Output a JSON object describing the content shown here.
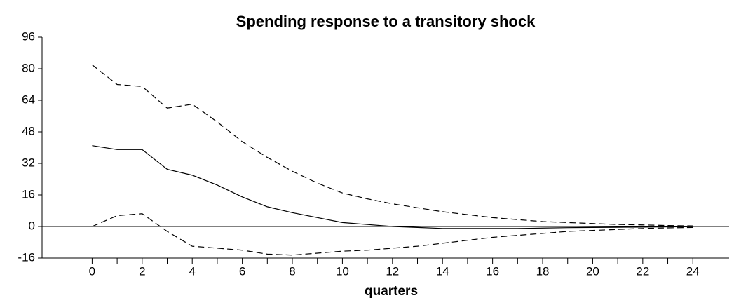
{
  "chart_data": {
    "type": "line",
    "title": "Spending response to a transitory shock",
    "x_label": "quarters",
    "x": [
      0,
      1,
      2,
      3,
      4,
      5,
      6,
      7,
      8,
      9,
      10,
      11,
      12,
      13,
      14,
      15,
      16,
      17,
      18,
      19,
      20,
      21,
      22,
      23,
      24
    ],
    "series": [
      {
        "color": "#000000",
        "dash": false,
        "values": [
          41,
          39,
          39,
          29,
          26,
          21,
          15,
          10,
          7,
          4.5,
          2,
          1,
          0,
          -0.5,
          -1,
          -1,
          -1,
          -1,
          -0.8,
          -0.6,
          -0.5,
          -0.4,
          -0.3,
          -0.2,
          -0.1
        ]
      },
      {
        "color": "#000000",
        "dash": true,
        "values": [
          82,
          72,
          71,
          60,
          62,
          53,
          43,
          35,
          28,
          22,
          17,
          14,
          11.5,
          9.5,
          7.5,
          6,
          4.5,
          3.5,
          2.5,
          2,
          1.5,
          1,
          0.8,
          0.5,
          0.3
        ]
      },
      {
        "color": "#000000",
        "dash": true,
        "values": [
          0,
          5.5,
          6.5,
          -2.5,
          -10,
          -11,
          -12,
          -14,
          -14.5,
          -13.5,
          -12.5,
          -12,
          -11,
          -10,
          -8.5,
          -7,
          -5.5,
          -4.5,
          -3.5,
          -2.5,
          -2,
          -1.5,
          -1,
          -0.7,
          -0.5
        ]
      }
    ],
    "xlim": [
      -2,
      25.45
    ],
    "xticks": [
      0,
      2,
      4,
      6,
      8,
      10,
      12,
      14,
      16,
      18,
      20,
      22,
      24
    ],
    "xminor_ticks": [
      1,
      3,
      5,
      7,
      9,
      11,
      13,
      15,
      17,
      19,
      21,
      23
    ],
    "ylim": [
      -16,
      96
    ],
    "yticks": [
      96,
      80,
      64,
      48,
      32,
      16,
      0,
      -16
    ],
    "zero_line": true
  }
}
